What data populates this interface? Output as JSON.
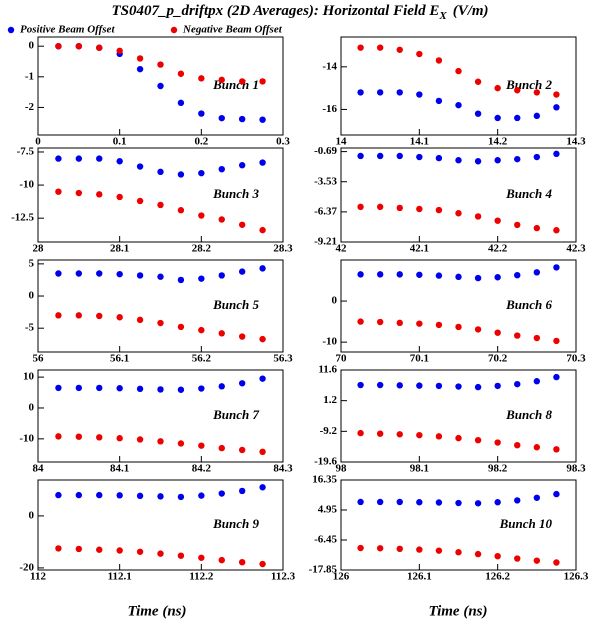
{
  "title": {
    "main": "TS0407_p_driftpx (2D Averages): Horizontal Field E",
    "subscript": "X",
    "unit": "(V/m)"
  },
  "legend": [
    {
      "name": "Positive Beam Offset",
      "color": "#0000ee"
    },
    {
      "name": "Negative Beam Offset",
      "color": "#ee0000"
    }
  ],
  "x_label": "Time (ns)",
  "chart_data": [
    {
      "type": "scatter",
      "annotation": "Bunch 1",
      "x": [
        0.025,
        0.05,
        0.075,
        0.1,
        0.125,
        0.15,
        0.175,
        0.2,
        0.225,
        0.25,
        0.275
      ],
      "series": [
        {
          "values": [
            0,
            0,
            -0.05,
            -0.25,
            -0.75,
            -1.3,
            -1.85,
            -2.2,
            -2.35,
            -2.38,
            -2.4
          ]
        },
        {
          "values": [
            0,
            0,
            -0.05,
            -0.15,
            -0.4,
            -0.6,
            -0.9,
            -1.05,
            -1.1,
            -1.15,
            -1.15
          ]
        }
      ],
      "xlim": [
        0,
        0.3
      ],
      "xticks": [
        0,
        0.1,
        0.2,
        0.3
      ],
      "ylim": [
        -2.9,
        0.3
      ],
      "yticks": [
        0,
        -1,
        -2
      ]
    },
    {
      "type": "scatter",
      "annotation": "Bunch 2",
      "x": [
        14.025,
        14.05,
        14.075,
        14.1,
        14.125,
        14.15,
        14.175,
        14.2,
        14.225,
        14.25,
        14.275
      ],
      "series": [
        {
          "values": [
            -15.2,
            -15.2,
            -15.2,
            -15.3,
            -15.6,
            -15.8,
            -16.2,
            -16.4,
            -16.4,
            -16.3,
            -15.9
          ]
        },
        {
          "values": [
            -13.1,
            -13.1,
            -13.2,
            -13.4,
            -13.7,
            -14.2,
            -14.7,
            -15,
            -15.1,
            -15.2,
            -15.3
          ]
        }
      ],
      "xlim": [
        14,
        14.3
      ],
      "xticks": [
        14,
        14.1,
        14.2,
        14.3
      ],
      "ylim": [
        -17.2,
        -12.6
      ],
      "yticks": [
        -14,
        -16
      ]
    },
    {
      "type": "scatter",
      "annotation": "Bunch 3",
      "x": [
        28.025,
        28.05,
        28.075,
        28.1,
        28.125,
        28.15,
        28.175,
        28.2,
        28.225,
        28.25,
        28.275
      ],
      "series": [
        {
          "values": [
            -8,
            -8,
            -8,
            -8.2,
            -8.6,
            -9,
            -9.2,
            -9.1,
            -8.8,
            -8.5,
            -8.3
          ]
        },
        {
          "values": [
            -10.5,
            -10.6,
            -10.7,
            -10.9,
            -11.2,
            -11.5,
            -11.9,
            -12.3,
            -12.6,
            -13,
            -13.4
          ]
        }
      ],
      "xlim": [
        28,
        28.3
      ],
      "xticks": [
        28,
        28.1,
        28.2,
        28.3
      ],
      "ylim": [
        -14.3,
        -7.2
      ],
      "yticks": [
        -7.5,
        -10,
        -12.5
      ]
    },
    {
      "type": "scatter",
      "annotation": "Bunch 4",
      "x": [
        42.025,
        42.05,
        42.075,
        42.1,
        42.125,
        42.15,
        42.175,
        42.2,
        42.225,
        42.25,
        42.275
      ],
      "series": [
        {
          "values": [
            -1.1,
            -1.1,
            -1.1,
            -1.2,
            -1.3,
            -1.5,
            -1.6,
            -1.5,
            -1.4,
            -1.2,
            -0.9
          ]
        },
        {
          "values": [
            -5.9,
            -5.9,
            -6,
            -6.1,
            -6.2,
            -6.5,
            -6.8,
            -7.2,
            -7.6,
            -7.9,
            -8.1
          ]
        }
      ],
      "xlim": [
        42,
        42.3
      ],
      "xticks": [
        42,
        42.1,
        42.2,
        42.3
      ],
      "ylim": [
        -9.21,
        -0.35
      ],
      "yticks": [
        -0.69,
        -3.53,
        -6.37,
        -9.21
      ]
    },
    {
      "type": "scatter",
      "annotation": "Bunch 5",
      "x": [
        56.025,
        56.05,
        56.075,
        56.1,
        56.125,
        56.15,
        56.175,
        56.2,
        56.225,
        56.25,
        56.275
      ],
      "series": [
        {
          "values": [
            3.5,
            3.5,
            3.5,
            3.4,
            3.2,
            3,
            2.5,
            2.7,
            3.2,
            3.8,
            4.3
          ]
        },
        {
          "values": [
            -3,
            -3,
            -3.1,
            -3.3,
            -3.7,
            -4.2,
            -4.8,
            -5.3,
            -5.8,
            -6.3,
            -6.7
          ]
        }
      ],
      "xlim": [
        56,
        56.3
      ],
      "xticks": [
        56,
        56.1,
        56.2,
        56.3
      ],
      "ylim": [
        -8.7,
        5.6
      ],
      "yticks": [
        5,
        0,
        -5
      ]
    },
    {
      "type": "scatter",
      "annotation": "Bunch 6",
      "x": [
        70.025,
        70.05,
        70.075,
        70.1,
        70.125,
        70.15,
        70.175,
        70.2,
        70.225,
        70.25,
        70.275
      ],
      "series": [
        {
          "values": [
            6.5,
            6.5,
            6.5,
            6.4,
            6.2,
            5.9,
            5.6,
            5.8,
            6.3,
            7,
            8.2
          ]
        },
        {
          "values": [
            -5,
            -5.1,
            -5.3,
            -5.5,
            -5.8,
            -6.3,
            -6.9,
            -7.7,
            -8.4,
            -9,
            -9.7
          ]
        }
      ],
      "xlim": [
        70,
        70.3
      ],
      "xticks": [
        70,
        70.1,
        70.2,
        70.3
      ],
      "ylim": [
        -12.4,
        10
      ],
      "yticks": [
        0,
        -10
      ]
    },
    {
      "type": "scatter",
      "annotation": "Bunch 7",
      "x": [
        84.025,
        84.05,
        84.075,
        84.1,
        84.125,
        84.15,
        84.175,
        84.2,
        84.225,
        84.25,
        84.275
      ],
      "series": [
        {
          "values": [
            6.5,
            6.5,
            6.5,
            6.4,
            6.2,
            6,
            5.9,
            6.3,
            7,
            8,
            9.5
          ]
        },
        {
          "values": [
            -9.2,
            -9.3,
            -9.5,
            -9.8,
            -10.2,
            -10.8,
            -11.5,
            -12.2,
            -13,
            -13.6,
            -14.2
          ]
        }
      ],
      "xlim": [
        84,
        84.3
      ],
      "xticks": [
        84,
        84.1,
        84.2,
        84.3
      ],
      "ylim": [
        -17.5,
        12.3
      ],
      "yticks": [
        10,
        0,
        -10
      ]
    },
    {
      "type": "scatter",
      "annotation": "Bunch 8",
      "x": [
        98.025,
        98.05,
        98.075,
        98.1,
        98.125,
        98.15,
        98.175,
        98.2,
        98.225,
        98.25,
        98.275
      ],
      "series": [
        {
          "values": [
            6.5,
            6.5,
            6.4,
            6.3,
            6.2,
            6,
            5.8,
            6.2,
            6.8,
            7.8,
            9.2
          ]
        },
        {
          "values": [
            -9.8,
            -10,
            -10.2,
            -10.5,
            -10.9,
            -11.5,
            -12.2,
            -13,
            -13.9,
            -14.6,
            -15.3
          ]
        }
      ],
      "xlim": [
        98,
        98.3
      ],
      "xticks": [
        98,
        98.1,
        98.2,
        98.3
      ],
      "ylim": [
        -19.6,
        11.6
      ],
      "yticks": [
        11.6,
        1.2,
        -9.2,
        -19.6
      ]
    },
    {
      "type": "scatter",
      "annotation": "Bunch 9",
      "x": [
        112.025,
        112.05,
        112.075,
        112.1,
        112.125,
        112.15,
        112.175,
        112.2,
        112.225,
        112.25,
        112.275
      ],
      "series": [
        {
          "values": [
            8,
            8,
            8,
            7.9,
            7.7,
            7.5,
            7.3,
            7.8,
            8.6,
            9.6,
            11
          ]
        },
        {
          "values": [
            -12.5,
            -12.7,
            -13,
            -13.3,
            -13.8,
            -14.5,
            -15.3,
            -16.1,
            -17,
            -17.8,
            -18.5
          ]
        }
      ],
      "xlim": [
        112,
        112.3
      ],
      "xticks": [
        112,
        112.1,
        112.2,
        112.3
      ],
      "ylim": [
        -20.8,
        13.8
      ],
      "yticks": [
        0,
        -20
      ]
    },
    {
      "type": "scatter",
      "annotation": "Bunch 10",
      "x": [
        126.025,
        126.05,
        126.075,
        126.1,
        126.125,
        126.15,
        126.175,
        126.2,
        126.225,
        126.25,
        126.275
      ],
      "series": [
        {
          "values": [
            8,
            8,
            8,
            7.9,
            7.8,
            7.6,
            7.5,
            7.9,
            8.6,
            9.6,
            11
          ]
        },
        {
          "values": [
            -9.5,
            -9.6,
            -9.8,
            -10.1,
            -10.5,
            -11.1,
            -11.8,
            -12.6,
            -13.5,
            -14.3,
            -15
          ]
        }
      ],
      "xlim": [
        126,
        126.3
      ],
      "xticks": [
        126,
        126.1,
        126.2,
        126.3
      ],
      "ylim": [
        -17.85,
        16.35
      ],
      "yticks": [
        16.35,
        4.95,
        -6.45,
        -17.85
      ]
    }
  ]
}
